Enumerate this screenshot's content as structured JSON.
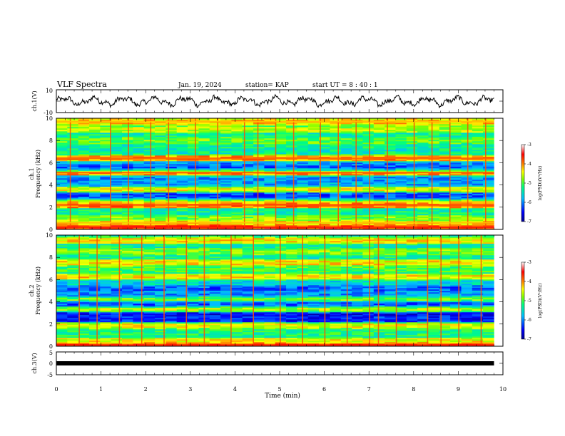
{
  "header": {
    "title": "VLF Spectra",
    "date": "Jan. 19, 2024",
    "station": "station= KAP",
    "start": "start  UT =  8 : 40 : 1"
  },
  "colors": {
    "spectrogram_scale": [
      "#00008f",
      "#0000ff",
      "#00bfff",
      "#00ff80",
      "#80ff00",
      "#ffff00",
      "#ff8000",
      "#ff0000",
      "#ffffff"
    ],
    "trace": "#000000"
  },
  "chart_data": [
    {
      "type": "line",
      "id": "ch1-waveform",
      "ylabel": "ch.1(V)",
      "xlim": [
        0,
        10
      ],
      "ylim": [
        -10,
        10
      ],
      "yticks": [
        "10",
        "-10"
      ],
      "amplitude": 5,
      "x_end": 9.8
    },
    {
      "type": "heatmap",
      "id": "ch1-spectrogram",
      "ylabel_lines": [
        "ch.1",
        "Frequency (kHz)"
      ],
      "xlim": [
        0,
        9.8
      ],
      "ylim": [
        0,
        10
      ],
      "yticks": [
        "0",
        "2",
        "4",
        "6",
        "8",
        "10"
      ],
      "background_level": -5.3,
      "bands": [
        {
          "f": 0.2,
          "level": -3.6
        },
        {
          "f": 0.6,
          "level": -4.2
        },
        {
          "f": 1.0,
          "level": -4.8
        },
        {
          "f": 2.2,
          "level": -3.8
        },
        {
          "f": 2.55,
          "level": -4.3
        },
        {
          "f": 2.8,
          "level": -6.2
        },
        {
          "f": 3.1,
          "level": -6.3
        },
        {
          "f": 3.6,
          "level": -4.4
        },
        {
          "f": 4.1,
          "level": -5.9
        },
        {
          "f": 4.6,
          "level": -6.0
        },
        {
          "f": 5.1,
          "level": -3.8
        },
        {
          "f": 5.3,
          "level": -5.4
        },
        {
          "f": 5.6,
          "level": -6.3
        },
        {
          "f": 5.9,
          "level": -6.0
        },
        {
          "f": 6.4,
          "level": -3.9
        },
        {
          "f": 7.0,
          "level": -5.4
        },
        {
          "f": 8.0,
          "level": -4.9
        },
        {
          "f": 9.0,
          "level": -4.6
        },
        {
          "f": 9.7,
          "level": -4.2
        }
      ],
      "spike_times": [
        0.3,
        1.2,
        1.6,
        2.1,
        2.5,
        3.1,
        3.6,
        4.2,
        4.5,
        4.9,
        5.3,
        5.9,
        6.3,
        6.7,
        7.0,
        7.4,
        8.0,
        8.4,
        8.8,
        9.2,
        9.6
      ],
      "colorbar": {
        "label": "log(PSD)(V²/Hz)",
        "range": [
          -7,
          -3
        ],
        "ticks": [
          "-3",
          "-4",
          "-5",
          "-6",
          "-7"
        ]
      }
    },
    {
      "type": "heatmap",
      "id": "ch2-spectrogram",
      "ylabel_lines": [
        "ch.2",
        "Frequency (kHz)"
      ],
      "xlim": [
        0,
        9.8
      ],
      "ylim": [
        0,
        10
      ],
      "yticks": [
        "0",
        "2",
        "4",
        "6",
        "8",
        "10"
      ],
      "background_level": -5.3,
      "bands": [
        {
          "f": 0.1,
          "level": -3.6
        },
        {
          "f": 0.5,
          "level": -4.4
        },
        {
          "f": 1.2,
          "level": -5.2
        },
        {
          "f": 1.9,
          "level": -4.4
        },
        {
          "f": 2.4,
          "level": -6.5
        },
        {
          "f": 2.9,
          "level": -6.6
        },
        {
          "f": 3.3,
          "level": -4.6
        },
        {
          "f": 3.8,
          "level": -6.2
        },
        {
          "f": 4.3,
          "level": -4.8
        },
        {
          "f": 4.6,
          "level": -6.0
        },
        {
          "f": 5.2,
          "level": -6.2
        },
        {
          "f": 5.8,
          "level": -5.6
        },
        {
          "f": 6.2,
          "level": -4.3
        },
        {
          "f": 7.0,
          "level": -5.0
        },
        {
          "f": 7.5,
          "level": -4.3
        },
        {
          "f": 8.5,
          "level": -4.8
        },
        {
          "f": 9.5,
          "level": -4.3
        }
      ],
      "spike_times": [
        0.5,
        0.9,
        1.4,
        1.9,
        2.4,
        2.9,
        3.3,
        3.9,
        4.4,
        5.0,
        5.5,
        6.0,
        6.5,
        7.0,
        7.2,
        7.6,
        8.3,
        8.6,
        9.0,
        9.5
      ],
      "colorbar": {
        "label": "log(PSD)(V²/Hz)",
        "range": [
          -7,
          -3
        ],
        "ticks": [
          "-3",
          "-4",
          "-5",
          "-6",
          "-7"
        ]
      }
    },
    {
      "type": "line",
      "id": "ch3-waveform",
      "ylabel": "ch.3(V)",
      "xlim": [
        0,
        10
      ],
      "ylim": [
        -5,
        5
      ],
      "yticks": [
        "5",
        "0",
        "-5"
      ],
      "value": 0,
      "x_end": 9.8
    }
  ],
  "x_axis": {
    "label": "Time  (min)",
    "ticks": [
      "0",
      "1",
      "2",
      "3",
      "4",
      "5",
      "6",
      "7",
      "8",
      "9",
      "10"
    ]
  }
}
